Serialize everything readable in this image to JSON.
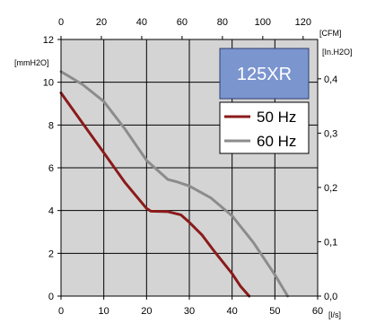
{
  "chart_data": {
    "type": "line",
    "title": "125XR",
    "x_bottom": {
      "unit": "[l/s]",
      "range": [
        0,
        60
      ],
      "ticks": [
        0,
        10,
        20,
        30,
        40,
        50,
        60
      ]
    },
    "x_top": {
      "unit": "[CFM]",
      "range": [
        0,
        127.2
      ],
      "ticks": [
        0,
        20,
        40,
        60,
        80,
        100,
        120
      ]
    },
    "y_left": {
      "unit": "[mmH2O]",
      "range": [
        0,
        12
      ],
      "ticks": [
        0,
        2,
        4,
        6,
        8,
        10,
        12
      ]
    },
    "y_right": {
      "unit": "[In.H2O]",
      "range": [
        0,
        0.4724
      ],
      "ticks": [
        "0,0",
        "0,1",
        "0,2",
        "0,3",
        "0,4"
      ]
    },
    "grid": true,
    "legend_position": "top-right",
    "series": [
      {
        "name": "50 Hz",
        "color": "#8b1a1a",
        "x": [
          0,
          5,
          10,
          15,
          20,
          21,
          25,
          28,
          30,
          33,
          36,
          40,
          42,
          44
        ],
        "y": [
          9.5,
          8.1,
          6.7,
          5.3,
          4.1,
          3.97,
          3.95,
          3.8,
          3.45,
          2.85,
          2.05,
          1.05,
          0.45,
          0
        ]
      },
      {
        "name": "60 Hz",
        "color": "#8c8c8c",
        "x": [
          0,
          5,
          10,
          15,
          20,
          25,
          27,
          30,
          35,
          40,
          45,
          50,
          53
        ],
        "y": [
          10.5,
          9.9,
          9.1,
          7.8,
          6.35,
          5.45,
          5.35,
          5.15,
          4.6,
          3.75,
          2.5,
          1.0,
          0
        ]
      }
    ]
  }
}
